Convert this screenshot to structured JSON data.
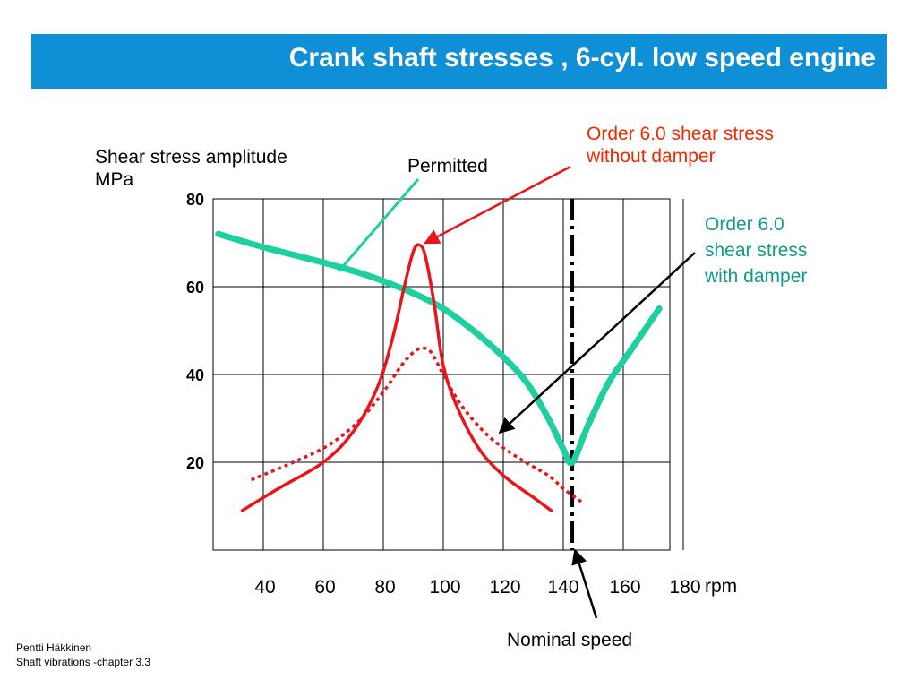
{
  "title": "Crank shaft stresses , 6-cyl. low speed engine",
  "colors": {
    "title_bar": "#0f8fd6",
    "permitted": "#1ecfa0",
    "without_damper": "#e8151b",
    "with_damper": "#e8151b",
    "order_without_label": "#ee2a00",
    "order_with_label": "#129b86"
  },
  "annotations": {
    "ylabel_line1": "Shear stress amplitude",
    "ylabel_line2": "MPa",
    "permitted": "Permitted",
    "order_without_line1": "Order 6.0 shear stress",
    "order_without_line2": "without damper",
    "order_with_line1": "Order 6.0",
    "order_with_line2": "shear stress",
    "order_with_line3": "with damper",
    "nominal_speed": "Nominal speed",
    "xunit": "rpm"
  },
  "footer": {
    "author": "Pentti Häkkinen",
    "course": "Shaft vibrations  -chapter 3.3"
  },
  "chart_data": {
    "type": "line",
    "title": "Crank shaft stresses , 6-cyl. low speed engine",
    "xlabel": "rpm",
    "ylabel": "Shear stress amplitude MPa",
    "xticks": [
      40,
      60,
      80,
      100,
      120,
      140,
      160,
      180
    ],
    "yticks": [
      20,
      40,
      60,
      80
    ],
    "xlim": [
      25,
      187
    ],
    "ylim": [
      0,
      80
    ],
    "grid": true,
    "nominal_speed_rpm": 143,
    "series": [
      {
        "name": "Permitted",
        "style": "solid-thick",
        "x": [
          25,
          40,
          60,
          75,
          90,
          100,
          110,
          120,
          128,
          135,
          140,
          143,
          148,
          155,
          163,
          172
        ],
        "y": [
          72,
          69,
          65.5,
          62.5,
          58.5,
          55,
          50,
          44,
          38,
          30,
          23,
          20,
          28,
          38,
          46,
          55
        ]
      },
      {
        "name": "Order 6.0 shear stress without damper",
        "style": "solid",
        "x": [
          33,
          45,
          60,
          70,
          78,
          83,
          87,
          90,
          92,
          94,
          97,
          100,
          105,
          112,
          120,
          130,
          136
        ],
        "y": [
          9,
          14,
          20,
          27,
          37,
          48,
          60,
          68,
          69.5,
          67,
          56,
          42,
          32,
          23,
          17,
          12,
          9
        ]
      },
      {
        "name": "Order 6.0 shear stress with damper",
        "style": "dotted",
        "x": [
          36,
          50,
          62,
          72,
          80,
          86,
          90,
          93,
          96,
          100,
          106,
          115,
          125,
          135,
          140,
          146
        ],
        "y": [
          16,
          20,
          24,
          29.5,
          36,
          42,
          45,
          46,
          45,
          40,
          33,
          26,
          21,
          17,
          14,
          11
        ]
      }
    ]
  }
}
